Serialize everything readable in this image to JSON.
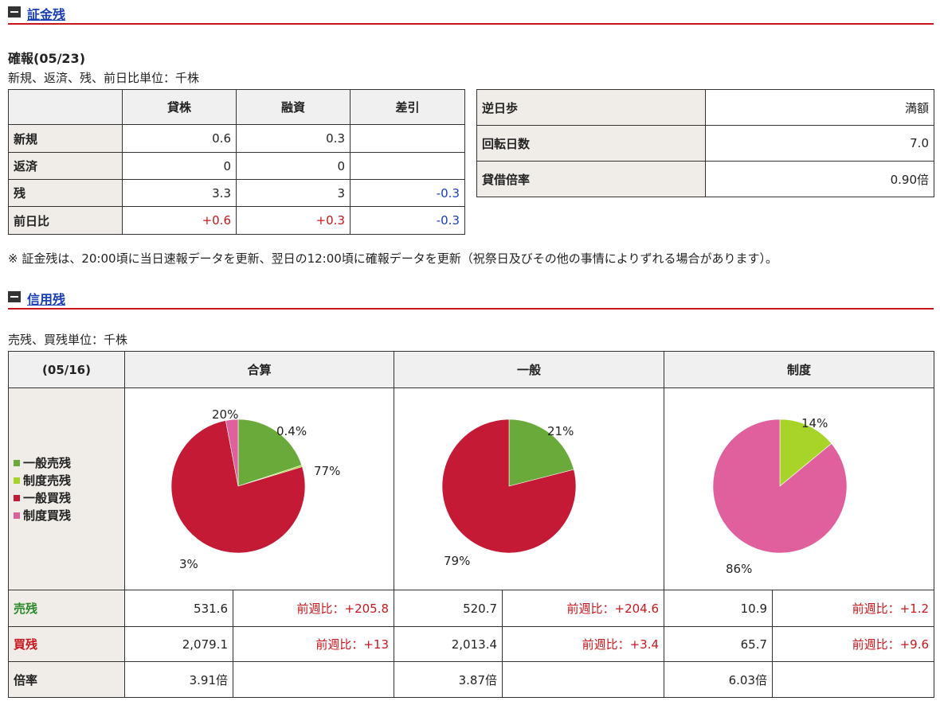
{
  "section1": {
    "title": "証金残",
    "confirmed_label": "確報(05/23)",
    "unit_note": "新規、返済、残、前日比単位：千株",
    "table_headers": [
      "",
      "貸株",
      "融資",
      "差引"
    ],
    "rows": [
      {
        "label": "新規",
        "lend": "0.6",
        "loan": "0.3",
        "diff": ""
      },
      {
        "label": "返済",
        "lend": "0",
        "loan": "0",
        "diff": ""
      },
      {
        "label": "残",
        "lend": "3.3",
        "loan": "3",
        "diff": "-0.3"
      },
      {
        "label": "前日比",
        "lend": "+0.6",
        "loan": "+0.3",
        "diff": "-0.3"
      }
    ],
    "side_table": [
      {
        "label": "逆日歩",
        "value": "満額"
      },
      {
        "label": "回転日数",
        "value": "7.0"
      },
      {
        "label": "貸借倍率",
        "value": "0.90倍"
      }
    ],
    "footnote": "※ 証金残は、20:00頃に当日速報データを更新、翌日の12:00頃に確報データを更新（祝祭日及びその他の事情によりずれる場合があります）。"
  },
  "section2": {
    "title": "信用残",
    "unit_note": "売残、買残単位：千株",
    "date_header": "(05/16)",
    "col_headers": [
      "合算",
      "一般",
      "制度"
    ],
    "legend": [
      {
        "label": "一般売残",
        "color": "#6aaa3a"
      },
      {
        "label": "制度売残",
        "color": "#a8d42a"
      },
      {
        "label": "一般買残",
        "color": "#c41a36"
      },
      {
        "label": "制度買残",
        "color": "#e0609e"
      }
    ],
    "rows": [
      {
        "label": "売残",
        "label_color": "#2a8a2a",
        "cells": [
          {
            "value": "531.6",
            "change": "前週比：+205.8"
          },
          {
            "value": "520.7",
            "change": "前週比：+204.6"
          },
          {
            "value": "10.9",
            "change": "前週比：+1.2"
          }
        ]
      },
      {
        "label": "買残",
        "label_color": "#c8161d",
        "cells": [
          {
            "value": "2,079.1",
            "change": "前週比：+13"
          },
          {
            "value": "2,013.4",
            "change": "前週比：+3.4"
          },
          {
            "value": "65.7",
            "change": "前週比：+9.6"
          }
        ]
      },
      {
        "label": "倍率",
        "label_color": "#222",
        "cells": [
          {
            "value": "3.91倍",
            "change": ""
          },
          {
            "value": "3.87倍",
            "change": ""
          },
          {
            "value": "6.03倍",
            "change": ""
          }
        ]
      }
    ]
  },
  "chart_data": [
    {
      "type": "pie",
      "name": "合算",
      "slices": [
        {
          "label": "一般売残",
          "value": 20,
          "text": "20%"
        },
        {
          "label": "制度売残",
          "value": 0.4,
          "text": "0.4%"
        },
        {
          "label": "一般買残",
          "value": 77,
          "text": "77%"
        },
        {
          "label": "制度買残",
          "value": 3,
          "text": "3%"
        }
      ]
    },
    {
      "type": "pie",
      "name": "一般",
      "slices": [
        {
          "label": "一般売残",
          "value": 21,
          "text": "21%"
        },
        {
          "label": "一般買残",
          "value": 79,
          "text": "79%"
        }
      ]
    },
    {
      "type": "pie",
      "name": "制度",
      "slices": [
        {
          "label": "制度売残",
          "value": 14,
          "text": "14%"
        },
        {
          "label": "制度買残",
          "value": 86,
          "text": "86%"
        }
      ]
    }
  ]
}
